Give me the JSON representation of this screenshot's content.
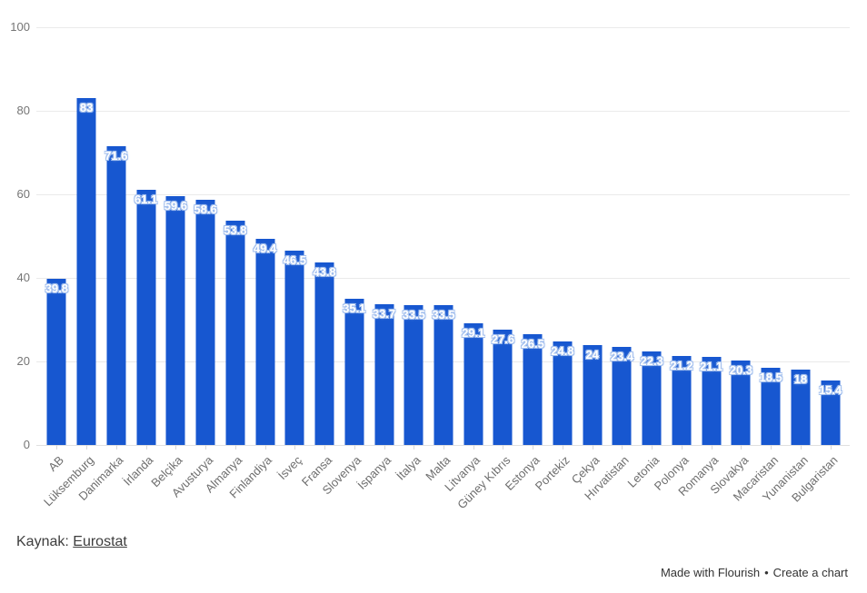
{
  "chart_data": {
    "type": "bar",
    "title": "",
    "xlabel": "",
    "ylabel": "",
    "categories": [
      "AB",
      "Lüksemburg",
      "Danimarka",
      "İrlanda",
      "Belçika",
      "Avusturya",
      "Almanya",
      "Finlandiya",
      "İsveç",
      "Fransa",
      "Slovenya",
      "İspanya",
      "İtalya",
      "Malta",
      "Litvanya",
      "Güney Kıbrıs",
      "Estonya",
      "Portekiz",
      "Çekya",
      "Hırvatistan",
      "Letonia",
      "Polonya",
      "Romanya",
      "Slovakya",
      "Macaristan",
      "Yunanistan",
      "Bulgaristan"
    ],
    "values": [
      39.8,
      83,
      71.6,
      61.1,
      59.6,
      58.6,
      53.8,
      49.4,
      46.5,
      43.8,
      35.1,
      33.7,
      33.5,
      33.5,
      29.1,
      27.6,
      26.5,
      24.8,
      24,
      23.4,
      22.3,
      21.2,
      21.1,
      20.3,
      18.5,
      18,
      15.4
    ],
    "ylim": [
      0,
      100
    ],
    "yticks": [
      0,
      20,
      40,
      60,
      80,
      100
    ],
    "grid": "horizontal",
    "legend": "none",
    "bar_color": "#1757d0",
    "value_label_color": "#ffffff",
    "value_label_halo": "#a4c0ee",
    "axis_label_color": "#757575"
  },
  "source": {
    "prefix": "Kaynak: ",
    "link_label": "Eurostat"
  },
  "footer": {
    "credit": "Made with Flourish",
    "separator": "•",
    "cta": "Create a chart"
  }
}
